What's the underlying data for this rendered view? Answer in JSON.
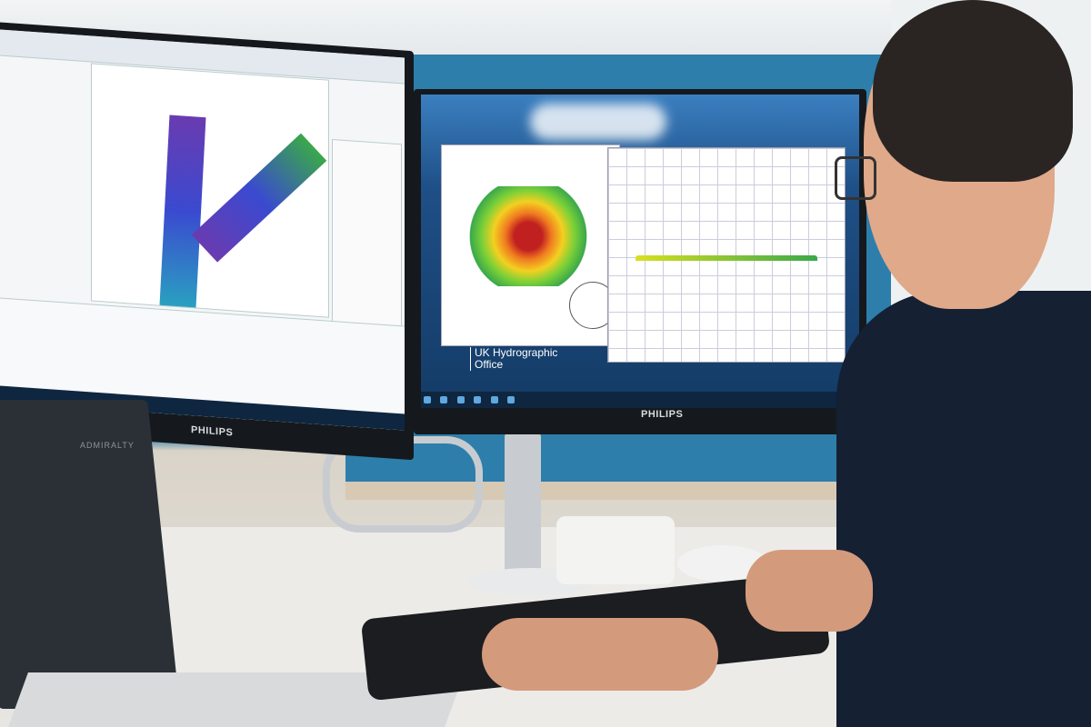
{
  "scene": {
    "left_monitor": {
      "brand": "PHILIPS"
    },
    "right_monitor": {
      "brand": "PHILIPS",
      "wallpaper_caption": {
        "line1": "UK Hydrographic",
        "line2": "Office"
      }
    },
    "laptop": {
      "brand": "ADMIRALTY"
    }
  },
  "colors": {
    "wall": "#2d7eab",
    "shirt": "#152033",
    "desk": "#ecebe8"
  }
}
